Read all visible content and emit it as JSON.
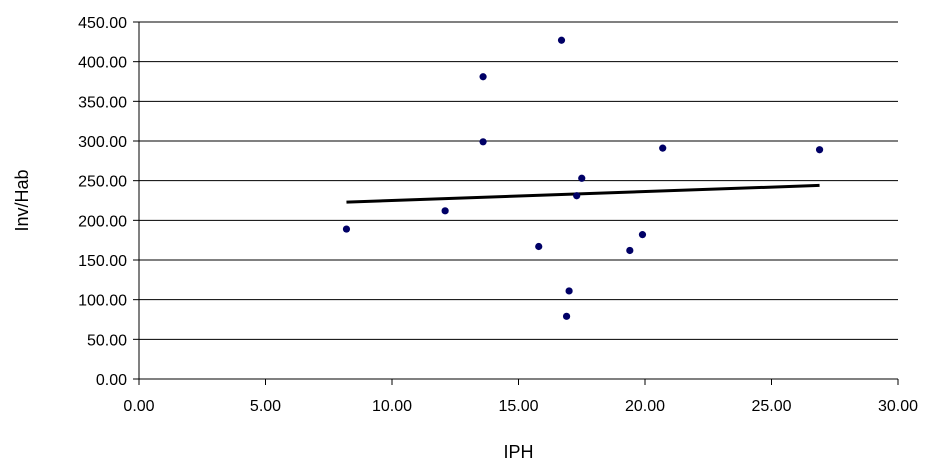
{
  "chart_data": {
    "type": "scatter",
    "xlabel": "IPH",
    "ylabel": "Inv/Hab",
    "xlim": [
      0,
      30
    ],
    "ylim": [
      0,
      450
    ],
    "x_ticks": [
      "0.00",
      "5.00",
      "10.00",
      "15.00",
      "20.00",
      "25.00",
      "30.00"
    ],
    "y_ticks": [
      "0.00",
      "50.00",
      "100.00",
      "150.00",
      "200.00",
      "250.00",
      "300.00",
      "350.00",
      "400.00",
      "450.00"
    ],
    "grid": "horizontal",
    "series": [
      {
        "points": [
          {
            "x": 8.2,
            "y": 189
          },
          {
            "x": 12.1,
            "y": 212
          },
          {
            "x": 13.6,
            "y": 381
          },
          {
            "x": 13.6,
            "y": 299
          },
          {
            "x": 15.8,
            "y": 167
          },
          {
            "x": 16.7,
            "y": 427
          },
          {
            "x": 16.9,
            "y": 79
          },
          {
            "x": 17.0,
            "y": 111
          },
          {
            "x": 17.3,
            "y": 231
          },
          {
            "x": 17.5,
            "y": 253
          },
          {
            "x": 19.4,
            "y": 162
          },
          {
            "x": 19.9,
            "y": 182
          },
          {
            "x": 20.7,
            "y": 291
          },
          {
            "x": 26.9,
            "y": 289
          }
        ]
      }
    ],
    "trendline": {
      "x": [
        8.2,
        26.9
      ],
      "y": [
        223,
        244
      ]
    },
    "colors": {
      "points": "#000066",
      "trendline": "#000000",
      "grid": "#000000"
    }
  }
}
